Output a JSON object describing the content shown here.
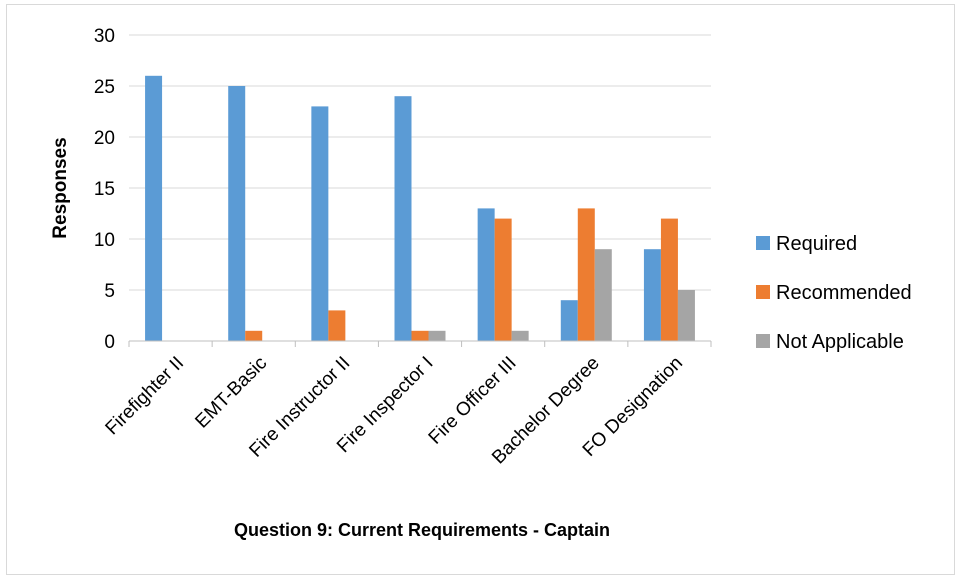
{
  "chart_data": {
    "type": "bar",
    "title": "",
    "xlabel": "Question 9: Current Requirements - Captain",
    "ylabel": "Responses",
    "ylim": [
      0,
      30
    ],
    "yticks": [
      0,
      5,
      10,
      15,
      20,
      25,
      30
    ],
    "grid": true,
    "legend_position": "right",
    "categories": [
      "Firefighter II",
      "EMT-Basic",
      "Fire Instructor II",
      "Fire Inspector I",
      "Fire Officer III",
      "Bachelor Degree",
      "FO Designation"
    ],
    "series": [
      {
        "name": "Required",
        "color": "#5b9bd5",
        "values": [
          26,
          25,
          23,
          24,
          13,
          4,
          9
        ]
      },
      {
        "name": "Recommended",
        "color": "#ed7d31",
        "values": [
          0,
          1,
          3,
          1,
          12,
          13,
          12
        ]
      },
      {
        "name": "Not Applicable",
        "color": "#a5a5a5",
        "values": [
          0,
          0,
          0,
          1,
          1,
          9,
          5
        ]
      }
    ]
  }
}
